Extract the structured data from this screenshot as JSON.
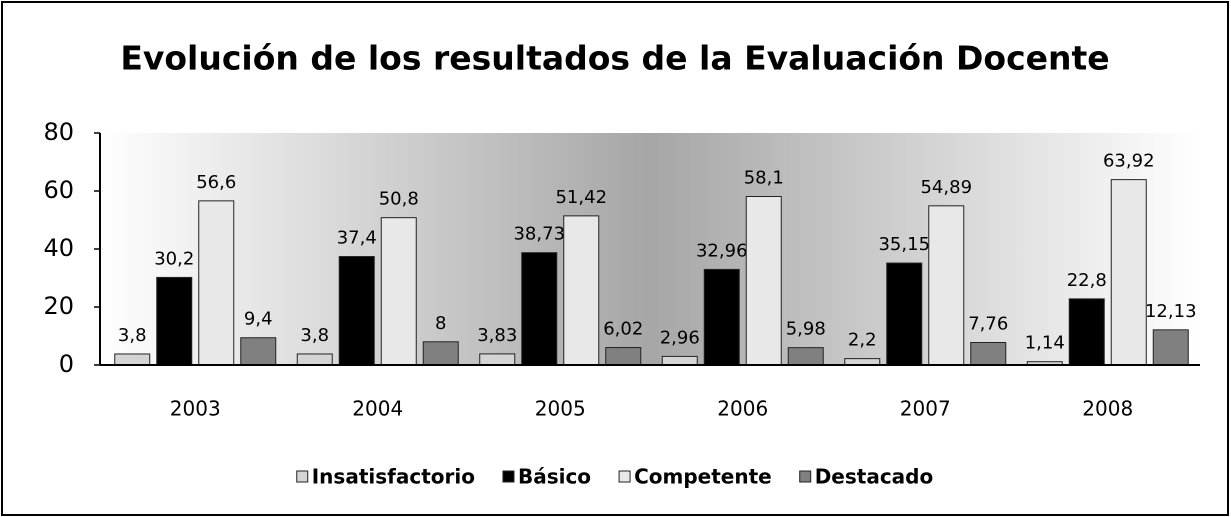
{
  "chart_data": {
    "type": "bar",
    "title": "Evolución de los resultados de la Evaluación Docente",
    "categories": [
      "2003",
      "2004",
      "2005",
      "2006",
      "2007",
      "2008"
    ],
    "series": [
      {
        "name": "Insatisfactorio",
        "color": "#d4d4d4",
        "values": [
          3.8,
          3.8,
          3.83,
          2.96,
          2.2,
          1.14
        ],
        "value_labels": [
          "3,8",
          "3,8",
          "3,83",
          "2,96",
          "2,2",
          "1,14"
        ]
      },
      {
        "name": "Básico",
        "color": "#000000",
        "values": [
          30.2,
          37.4,
          38.73,
          32.96,
          35.15,
          22.8
        ],
        "value_labels": [
          "30,2",
          "37,4",
          "38,73",
          "32,96",
          "35,15",
          "22,8"
        ]
      },
      {
        "name": "Competente",
        "color": "#e8e8e8",
        "values": [
          56.6,
          50.8,
          51.42,
          58.1,
          54.89,
          63.92
        ],
        "value_labels": [
          "56,6",
          "50,8",
          "51,42",
          "58,1",
          "54,89",
          "63,92"
        ]
      },
      {
        "name": "Destacado",
        "color": "#808080",
        "values": [
          9.4,
          8,
          6.02,
          5.98,
          7.76,
          12.13
        ],
        "value_labels": [
          "9,4",
          "8",
          "6,02",
          "5,98",
          "7,76",
          "12,13"
        ]
      }
    ],
    "ylim": [
      0,
      80
    ],
    "yticks": [
      0,
      20,
      40,
      60,
      80
    ],
    "grid": false,
    "legend": "bottom"
  }
}
